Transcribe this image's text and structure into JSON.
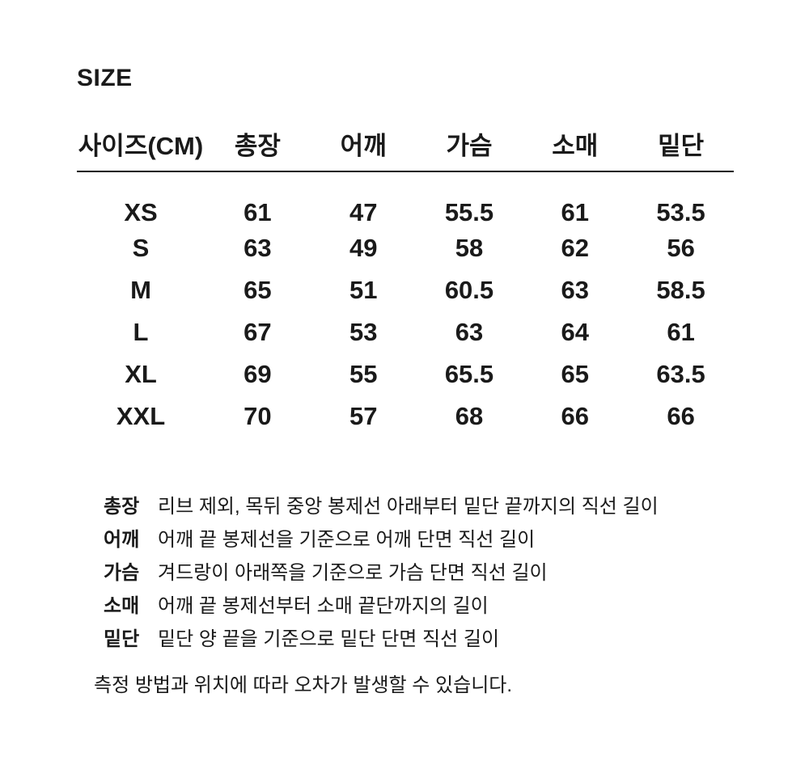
{
  "title": "SIZE",
  "colors": {
    "text": "#1a1a1a",
    "background": "#ffffff",
    "rule": "#111111"
  },
  "chart_data": {
    "type": "table",
    "title": "SIZE",
    "columns": [
      "사이즈(CM)",
      "총장",
      "어깨",
      "가슴",
      "소매",
      "밑단"
    ],
    "rows": [
      [
        "XS",
        "61",
        "47",
        "55.5",
        "61",
        "53.5"
      ],
      [
        "S",
        "63",
        "49",
        "58",
        "62",
        "56"
      ],
      [
        "M",
        "65",
        "51",
        "60.5",
        "63",
        "58.5"
      ],
      [
        "L",
        "67",
        "53",
        "63",
        "64",
        "61"
      ],
      [
        "XL",
        "69",
        "55",
        "65.5",
        "65",
        "63.5"
      ],
      [
        "XXL",
        "70",
        "57",
        "68",
        "66",
        "66"
      ]
    ]
  },
  "legend": [
    {
      "term": "총장",
      "definition": "리브 제외, 목뒤 중앙 봉제선 아래부터 밑단 끝까지의 직선 길이"
    },
    {
      "term": "어깨",
      "definition": "어깨 끝 봉제선을 기준으로 어깨 단면 직선 길이"
    },
    {
      "term": "가슴",
      "definition": "겨드랑이 아래쪽을 기준으로 가슴 단면 직선 길이"
    },
    {
      "term": "소매",
      "definition": "어깨 끝 봉제선부터 소매 끝단까지의 길이"
    },
    {
      "term": "밑단",
      "definition": "밑단 양 끝을 기준으로 밑단 단면 직선 길이"
    }
  ],
  "note": "측정 방법과 위치에 따라 오차가 발생할 수 있습니다."
}
